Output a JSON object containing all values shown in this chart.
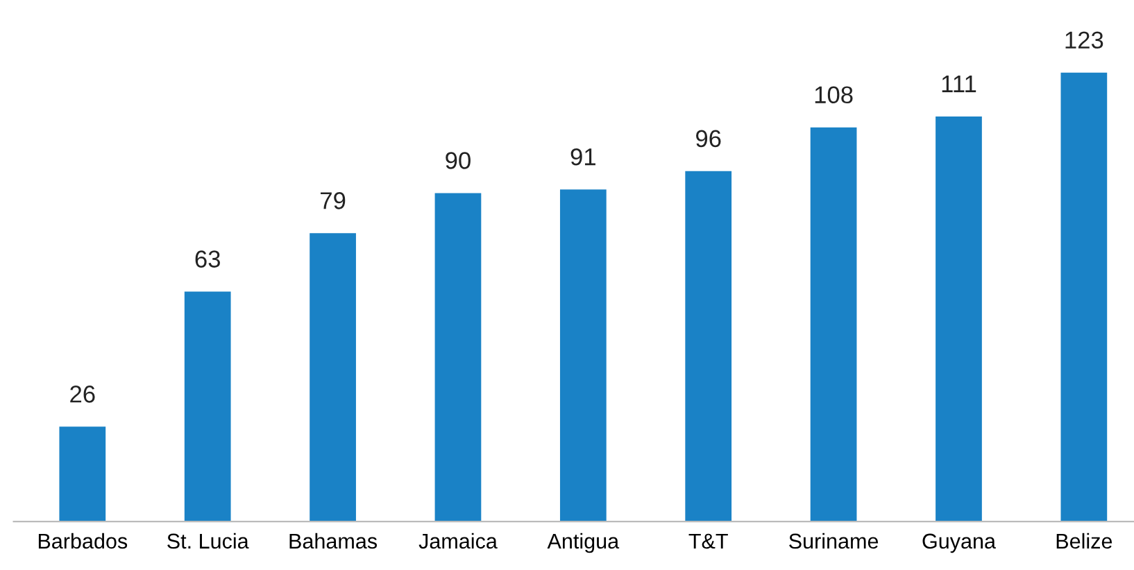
{
  "chart_data": {
    "type": "bar",
    "categories": [
      "Barbados",
      "St. Lucia",
      "Bahamas",
      "Jamaica",
      "Antigua",
      "T&T",
      "Suriname",
      "Guyana",
      "Belize"
    ],
    "values": [
      26,
      63,
      79,
      90,
      91,
      96,
      108,
      111,
      123
    ],
    "color": "#1a82c6",
    "data_labels": true,
    "grid": false,
    "legend": false
  }
}
